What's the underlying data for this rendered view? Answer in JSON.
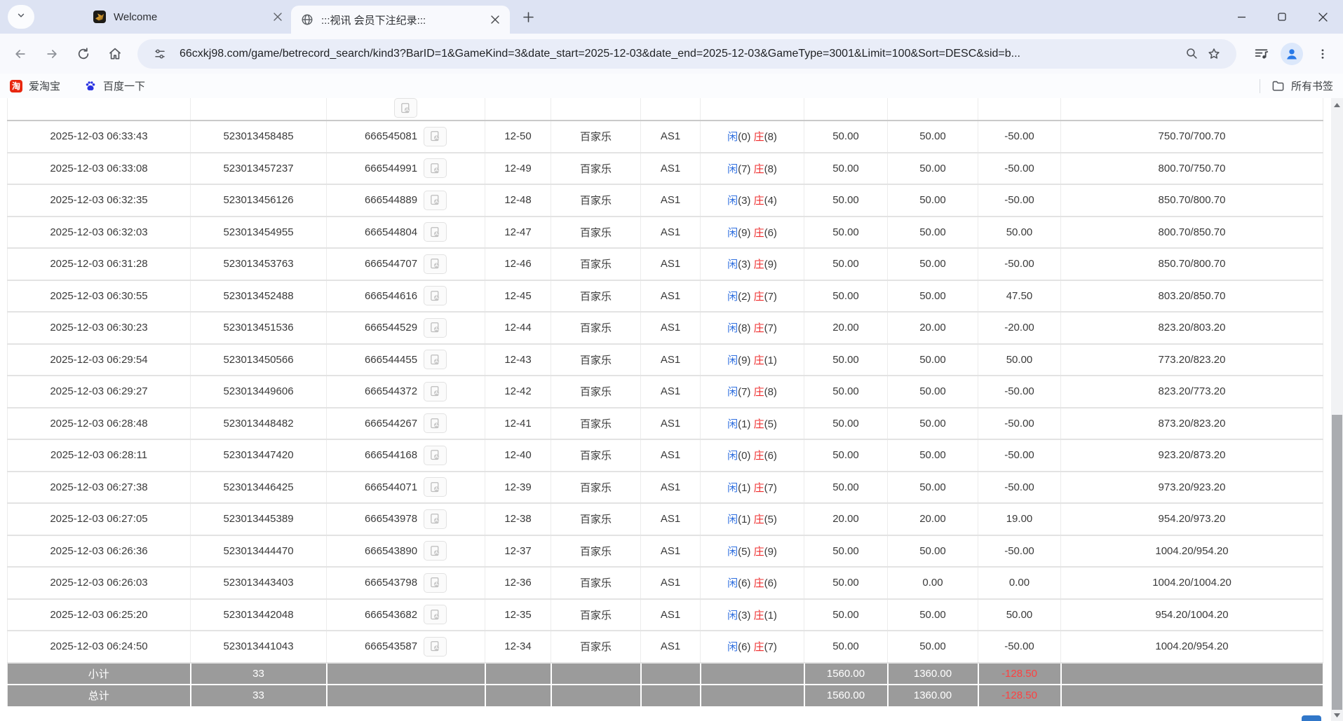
{
  "browser": {
    "tab_welcome": {
      "title": "Welcome"
    },
    "tab_record": {
      "title": ":::视讯 会员下注纪录:::"
    },
    "url": "66cxkj98.com/game/betrecord_search/kind3?BarID=1&GameKind=3&date_start=2025-12-03&date_end=2025-12-03&GameType=3001&Limit=100&Sort=DESC&sid=b...",
    "bookmarks": {
      "taobao": "爱淘宝",
      "baidu": "百度一下",
      "all_bookmarks": "所有书签"
    },
    "taobao_glyph": "淘"
  },
  "colors": {
    "link_blue": "#2f6fdf",
    "loss_red": "#ee2c2c",
    "summary_bg": "#9b9b9b",
    "summary_red": "#ff4040"
  },
  "bet_table": {
    "labels": {
      "player": "闲",
      "banker": "庄"
    },
    "records": [
      {
        "time": "2025-12-03 06:33:43",
        "bet_id": "523013458485",
        "game_id": "666545081",
        "round": "12-50",
        "game": "百家乐",
        "table": "AS1",
        "player_pts": "(0)",
        "banker_pts": "(8)",
        "bet": "50.00",
        "valid": "50.00",
        "result": "-50.00",
        "balance": "750.70/700.70"
      },
      {
        "time": "2025-12-03 06:33:08",
        "bet_id": "523013457237",
        "game_id": "666544991",
        "round": "12-49",
        "game": "百家乐",
        "table": "AS1",
        "player_pts": "(7)",
        "banker_pts": "(8)",
        "bet": "50.00",
        "valid": "50.00",
        "result": "-50.00",
        "balance": "800.70/750.70"
      },
      {
        "time": "2025-12-03 06:32:35",
        "bet_id": "523013456126",
        "game_id": "666544889",
        "round": "12-48",
        "game": "百家乐",
        "table": "AS1",
        "player_pts": "(3)",
        "banker_pts": "(4)",
        "bet": "50.00",
        "valid": "50.00",
        "result": "-50.00",
        "balance": "850.70/800.70"
      },
      {
        "time": "2025-12-03 06:32:03",
        "bet_id": "523013454955",
        "game_id": "666544804",
        "round": "12-47",
        "game": "百家乐",
        "table": "AS1",
        "player_pts": "(9)",
        "banker_pts": "(6)",
        "bet": "50.00",
        "valid": "50.00",
        "result": "50.00",
        "balance": "800.70/850.70"
      },
      {
        "time": "2025-12-03 06:31:28",
        "bet_id": "523013453763",
        "game_id": "666544707",
        "round": "12-46",
        "game": "百家乐",
        "table": "AS1",
        "player_pts": "(3)",
        "banker_pts": "(9)",
        "bet": "50.00",
        "valid": "50.00",
        "result": "-50.00",
        "balance": "850.70/800.70"
      },
      {
        "time": "2025-12-03 06:30:55",
        "bet_id": "523013452488",
        "game_id": "666544616",
        "round": "12-45",
        "game": "百家乐",
        "table": "AS1",
        "player_pts": "(2)",
        "banker_pts": "(7)",
        "bet": "50.00",
        "valid": "50.00",
        "result": "47.50",
        "balance": "803.20/850.70"
      },
      {
        "time": "2025-12-03 06:30:23",
        "bet_id": "523013451536",
        "game_id": "666544529",
        "round": "12-44",
        "game": "百家乐",
        "table": "AS1",
        "player_pts": "(8)",
        "banker_pts": "(7)",
        "bet": "20.00",
        "valid": "20.00",
        "result": "-20.00",
        "balance": "823.20/803.20"
      },
      {
        "time": "2025-12-03 06:29:54",
        "bet_id": "523013450566",
        "game_id": "666544455",
        "round": "12-43",
        "game": "百家乐",
        "table": "AS1",
        "player_pts": "(9)",
        "banker_pts": "(1)",
        "bet": "50.00",
        "valid": "50.00",
        "result": "50.00",
        "balance": "773.20/823.20"
      },
      {
        "time": "2025-12-03 06:29:27",
        "bet_id": "523013449606",
        "game_id": "666544372",
        "round": "12-42",
        "game": "百家乐",
        "table": "AS1",
        "player_pts": "(7)",
        "banker_pts": "(8)",
        "bet": "50.00",
        "valid": "50.00",
        "result": "-50.00",
        "balance": "823.20/773.20"
      },
      {
        "time": "2025-12-03 06:28:48",
        "bet_id": "523013448482",
        "game_id": "666544267",
        "round": "12-41",
        "game": "百家乐",
        "table": "AS1",
        "player_pts": "(1)",
        "banker_pts": "(5)",
        "bet": "50.00",
        "valid": "50.00",
        "result": "-50.00",
        "balance": "873.20/823.20"
      },
      {
        "time": "2025-12-03 06:28:11",
        "bet_id": "523013447420",
        "game_id": "666544168",
        "round": "12-40",
        "game": "百家乐",
        "table": "AS1",
        "player_pts": "(0)",
        "banker_pts": "(6)",
        "bet": "50.00",
        "valid": "50.00",
        "result": "-50.00",
        "balance": "923.20/873.20"
      },
      {
        "time": "2025-12-03 06:27:38",
        "bet_id": "523013446425",
        "game_id": "666544071",
        "round": "12-39",
        "game": "百家乐",
        "table": "AS1",
        "player_pts": "(1)",
        "banker_pts": "(7)",
        "bet": "50.00",
        "valid": "50.00",
        "result": "-50.00",
        "balance": "973.20/923.20"
      },
      {
        "time": "2025-12-03 06:27:05",
        "bet_id": "523013445389",
        "game_id": "666543978",
        "round": "12-38",
        "game": "百家乐",
        "table": "AS1",
        "player_pts": "(1)",
        "banker_pts": "(5)",
        "bet": "20.00",
        "valid": "20.00",
        "result": "19.00",
        "balance": "954.20/973.20"
      },
      {
        "time": "2025-12-03 06:26:36",
        "bet_id": "523013444470",
        "game_id": "666543890",
        "round": "12-37",
        "game": "百家乐",
        "table": "AS1",
        "player_pts": "(5)",
        "banker_pts": "(9)",
        "bet": "50.00",
        "valid": "50.00",
        "result": "-50.00",
        "balance": "1004.20/954.20"
      },
      {
        "time": "2025-12-03 06:26:03",
        "bet_id": "523013443403",
        "game_id": "666543798",
        "round": "12-36",
        "game": "百家乐",
        "table": "AS1",
        "player_pts": "(6)",
        "banker_pts": "(6)",
        "bet": "50.00",
        "valid": "0.00",
        "result": "0.00",
        "balance": "1004.20/1004.20"
      },
      {
        "time": "2025-12-03 06:25:20",
        "bet_id": "523013442048",
        "game_id": "666543682",
        "round": "12-35",
        "game": "百家乐",
        "table": "AS1",
        "player_pts": "(3)",
        "banker_pts": "(1)",
        "bet": "50.00",
        "valid": "50.00",
        "result": "50.00",
        "balance": "954.20/1004.20"
      },
      {
        "time": "2025-12-03 06:24:50",
        "bet_id": "523013441043",
        "game_id": "666543587",
        "round": "12-34",
        "game": "百家乐",
        "table": "AS1",
        "player_pts": "(6)",
        "banker_pts": "(7)",
        "bet": "50.00",
        "valid": "50.00",
        "result": "-50.00",
        "balance": "1004.20/954.20"
      }
    ],
    "summary": {
      "subtotal_label": "小计",
      "total_label": "总计",
      "count": "33",
      "bet": "1560.00",
      "valid": "1360.00",
      "result": "-128.50"
    }
  }
}
